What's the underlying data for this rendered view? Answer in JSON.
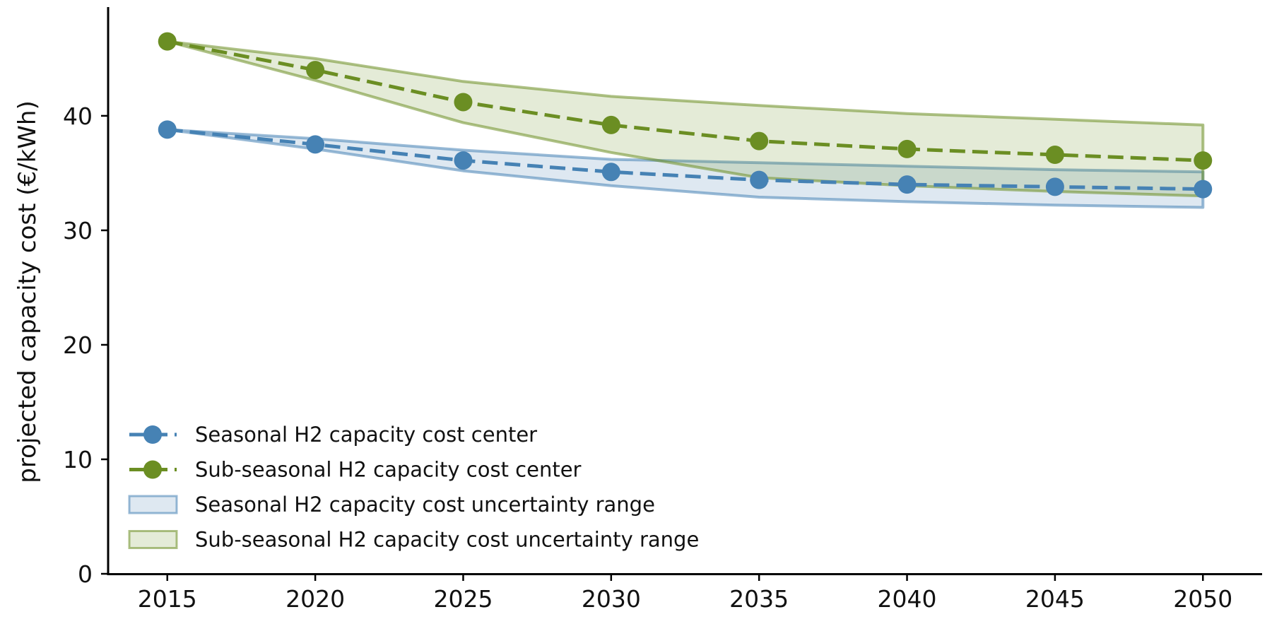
{
  "chart_data": {
    "type": "line",
    "title": "",
    "xlabel": "",
    "ylabel": "projected capacity cost (€/kWh)",
    "xlim": [
      2013,
      2052
    ],
    "ylim": [
      0,
      49.5
    ],
    "x_ticks": [
      2015,
      2020,
      2025,
      2030,
      2035,
      2040,
      2045,
      2050
    ],
    "y_ticks": [
      0,
      10,
      20,
      30,
      40
    ],
    "grid": false,
    "legend_position": "lower-left",
    "x": [
      2015,
      2020,
      2025,
      2030,
      2035,
      2040,
      2045,
      2050
    ],
    "series": [
      {
        "name": "Seasonal H2 capacity cost center",
        "color": "#4682b4",
        "values": [
          38.8,
          37.5,
          36.1,
          35.1,
          34.4,
          34.0,
          33.8,
          33.6
        ],
        "band_name": "Seasonal H2 capacity cost uncertainty range",
        "band_low": [
          38.8,
          37.1,
          35.2,
          33.9,
          32.9,
          32.5,
          32.2,
          32.0
        ],
        "band_high": [
          38.8,
          38.0,
          37.0,
          36.2,
          35.9,
          35.6,
          35.3,
          35.1
        ]
      },
      {
        "name": "Sub-seasonal H2 capacity cost center",
        "color": "#6b8e23",
        "values": [
          46.5,
          44.0,
          41.2,
          39.2,
          37.8,
          37.1,
          36.6,
          36.1
        ],
        "band_name": "Sub-seasonal H2 capacity cost uncertainty range",
        "band_low": [
          46.5,
          43.1,
          39.4,
          36.8,
          34.6,
          33.9,
          33.4,
          33.0
        ],
        "band_high": [
          46.5,
          45.0,
          43.0,
          41.7,
          40.9,
          40.2,
          39.7,
          39.2
        ]
      }
    ]
  }
}
